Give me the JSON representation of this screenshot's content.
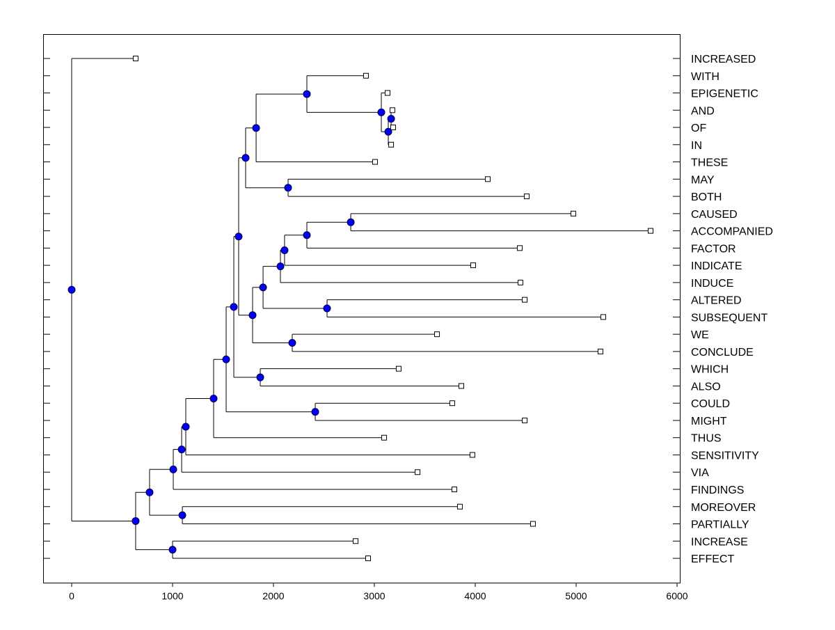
{
  "chart_data": {
    "type": "dendrogram",
    "title": "",
    "xlabel": "",
    "ylabel": "",
    "xlim": [
      -280,
      6000
    ],
    "xticks": [
      0,
      1000,
      2000,
      3000,
      4000,
      5000,
      6000
    ],
    "grid": false,
    "colors": {
      "node": "#0000ff",
      "leaf": "#ffffff",
      "line": "#000000"
    },
    "tree": {
      "value": 0,
      "children": [
        {
          "label": "INCREASED",
          "value": 634
        },
        {
          "value": 634,
          "children": [
            {
              "value": 772,
              "children": [
                {
                  "value": 1007,
                  "children": [
                    {
                      "value": 1090,
                      "children": [
                        {
                          "value": 1131,
                          "children": [
                            {
                              "value": 1407,
                              "children": [
                                {
                                  "value": 1531,
                                  "children": [
                                    {
                                      "value": 1607,
                                      "children": [
                                        {
                                          "value": 1655,
                                          "children": [
                                            {
                                              "value": 1724,
                                              "children": [
                                                {
                                                  "value": 1828,
                                                  "children": [
                                                    {
                                                      "value": 2331,
                                                      "children": [
                                                        {
                                                          "label": "WITH",
                                                          "value": 2917
                                                        },
                                                        {
                                                          "value": 3069,
                                                          "children": [
                                                            {
                                                              "label": "EPIGENETIC",
                                                              "value": 3131
                                                            },
                                                            {
                                                              "value": 3138,
                                                              "children": [
                                                                {
                                                                  "value": 3166,
                                                                  "children": [
                                                                    {
                                                                      "label": "AND",
                                                                      "value": 3179
                                                                    },
                                                                    {
                                                                      "label": "OF",
                                                                      "value": 3186
                                                                    }
                                                                  ]
                                                                },
                                                                {
                                                                  "label": "IN",
                                                                  "value": 3166
                                                                }
                                                              ]
                                                            }
                                                          ]
                                                        }
                                                      ]
                                                    },
                                                    {
                                                      "label": "THESE",
                                                      "value": 3007
                                                    }
                                                  ]
                                                },
                                                {
                                                  "value": 2145,
                                                  "children": [
                                                    {
                                                      "label": "MAY",
                                                      "value": 4124
                                                    },
                                                    {
                                                      "label": "BOTH",
                                                      "value": 4510
                                                    }
                                                  ]
                                                }
                                              ]
                                            },
                                            {
                                              "value": 1793,
                                              "children": [
                                                {
                                                  "value": 1897,
                                                  "children": [
                                                    {
                                                      "value": 2069,
                                                      "children": [
                                                        {
                                                          "value": 2110,
                                                          "children": [
                                                            {
                                                              "value": 2331,
                                                              "children": [
                                                                {
                                                                  "value": 2766,
                                                                  "children": [
                                                                    {
                                                                      "label": "CAUSED",
                                                                      "value": 4972
                                                                    },
                                                                    {
                                                                      "label": "ACCOMPANIED",
                                                                      "value": 5738
                                                                    }
                                                                  ]
                                                                },
                                                                {
                                                                  "label": "FACTOR",
                                                                  "value": 4441
                                                                }
                                                              ]
                                                            },
                                                            {
                                                              "label": "INDICATE",
                                                              "value": 3979
                                                            }
                                                          ]
                                                        },
                                                        {
                                                          "label": "INDUCE",
                                                          "value": 4448
                                                        }
                                                      ]
                                                    },
                                                    {
                                                      "value": 2531,
                                                      "children": [
                                                        {
                                                          "label": "ALTERED",
                                                          "value": 4490
                                                        },
                                                        {
                                                          "label": "SUBSEQUENT",
                                                          "value": 5269
                                                        }
                                                      ]
                                                    }
                                                  ]
                                                },
                                                {
                                                  "value": 2186,
                                                  "children": [
                                                    {
                                                      "label": "WE",
                                                      "value": 3621
                                                    },
                                                    {
                                                      "label": "CONCLUDE",
                                                      "value": 5241
                                                    }
                                                  ]
                                                }
                                              ]
                                            }
                                          ]
                                        },
                                        {
                                          "value": 1869,
                                          "children": [
                                            {
                                              "label": "WHICH",
                                              "value": 3241
                                            },
                                            {
                                              "label": "ALSO",
                                              "value": 3862
                                            }
                                          ]
                                        }
                                      ]
                                    },
                                    {
                                      "value": 2414,
                                      "children": [
                                        {
                                          "label": "COULD",
                                          "value": 3772
                                        },
                                        {
                                          "label": "MIGHT",
                                          "value": 4490
                                        }
                                      ]
                                    }
                                  ]
                                },
                                {
                                  "label": "THUS",
                                  "value": 3097
                                }
                              ]
                            },
                            {
                              "label": "SENSITIVITY",
                              "value": 3972
                            }
                          ]
                        },
                        {
                          "label": "VIA",
                          "value": 3428
                        }
                      ]
                    },
                    {
                      "label": "FINDINGS",
                      "value": 3793
                    }
                  ]
                },
                {
                  "value": 1097,
                  "children": [
                    {
                      "label": "MOREOVER",
                      "value": 3848
                    },
                    {
                      "label": "PARTIALLY",
                      "value": 4572
                    }
                  ]
                }
              ]
            },
            {
              "value": 1000,
              "children": [
                {
                  "label": "INCREASE",
                  "value": 2814
                },
                {
                  "label": "EFFECT",
                  "value": 2938
                }
              ]
            }
          ]
        }
      ]
    }
  }
}
